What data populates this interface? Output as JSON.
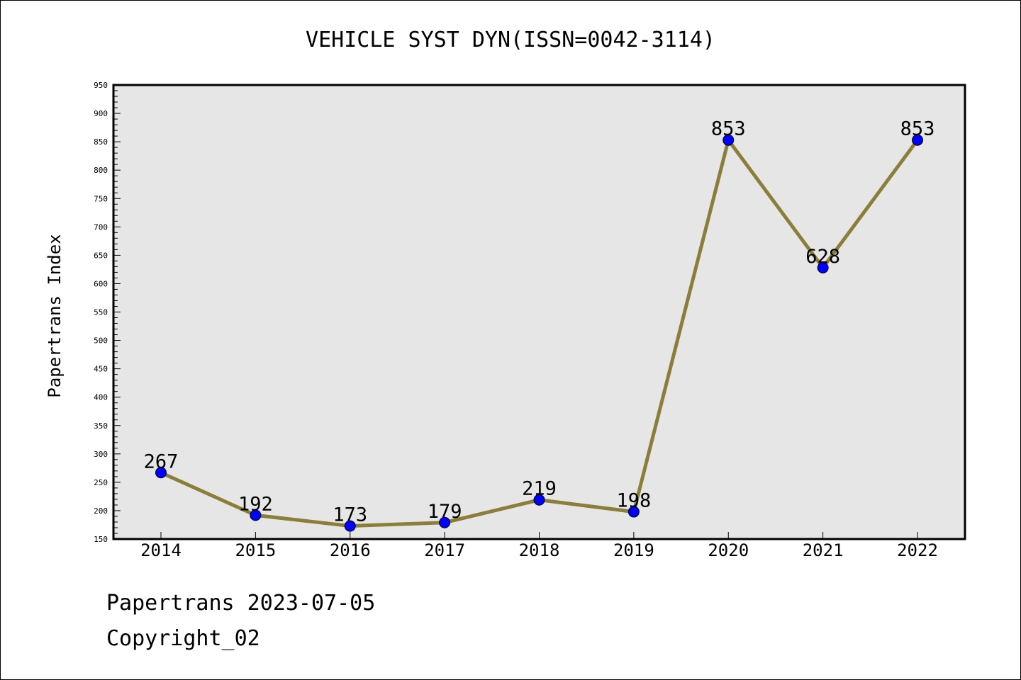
{
  "chart_data": {
    "type": "line",
    "title": "VEHICLE SYST DYN(ISSN=0042-3114)",
    "xlabel": "",
    "ylabel": "Papertrans Index",
    "categories": [
      "2014",
      "2015",
      "2016",
      "2017",
      "2018",
      "2019",
      "2020",
      "2021",
      "2022"
    ],
    "series": [
      {
        "values": [
          267,
          192,
          173,
          179,
          219,
          198,
          853,
          628,
          853
        ]
      }
    ],
    "ylim": [
      150,
      950
    ],
    "yticks": [
      150,
      200,
      250,
      300,
      350,
      400,
      450,
      500,
      550,
      600,
      650,
      700,
      750,
      800,
      850,
      900,
      950
    ],
    "grid": false,
    "line_color": "#8b7d3a",
    "marker_color": "#0000ff",
    "plot_background": "#e6e6e6"
  },
  "footer": {
    "source": "Papertrans 2023-07-05",
    "copyright": "Copyright_02"
  }
}
